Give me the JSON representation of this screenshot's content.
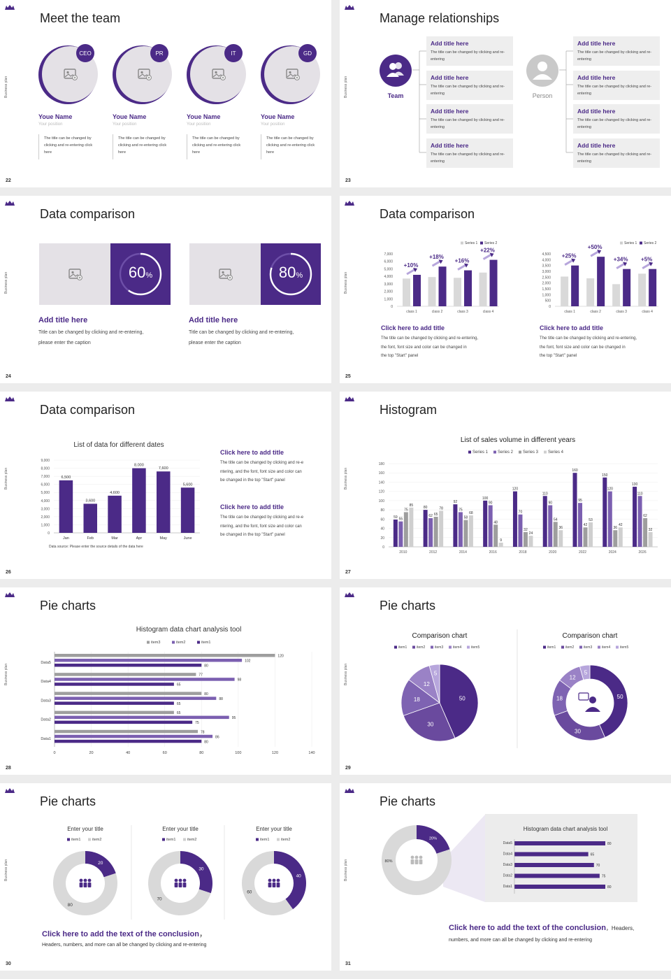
{
  "colors": {
    "purple": "#4b2a87",
    "mid": "#7b5fb0",
    "light": "#b8a8d8",
    "gray": "#bdbdbd",
    "bg": "#ececec"
  },
  "side_label": "Business plan",
  "s22": {
    "num": "22",
    "title": "Meet the team",
    "members": [
      {
        "badge": "CEO",
        "name": "Youe Name",
        "position": "Your position",
        "desc": "The title can be changed by clicking and re-entering click here"
      },
      {
        "badge": "PR",
        "name": "Youe Name",
        "position": "Your position",
        "desc": "The title can be changed by clicking and re-entering click here"
      },
      {
        "badge": "IT",
        "name": "Youe Name",
        "position": "Your position",
        "desc": "The title can be changed by clicking and re-entering click here"
      },
      {
        "badge": "GD",
        "name": "Youe Name",
        "position": "Your position",
        "desc": "The title can be changed by clicking and re-entering click here"
      }
    ]
  },
  "s23": {
    "num": "23",
    "title": "Manage relationships",
    "team_label": "Team",
    "person_label": "Person",
    "box_title": "Add title here",
    "box_text": "The title can be changed by clicking and re-entering"
  },
  "s24": {
    "num": "24",
    "title": "Data comparison",
    "cards": [
      {
        "pct": "60",
        "unit": "%",
        "title": "Add title here",
        "text1": "Title can be changed by clicking and re-entering,",
        "text2": "please enter the caption"
      },
      {
        "pct": "80",
        "unit": "%",
        "title": "Add title here",
        "text1": "Title can be changed by clicking and re-entering,",
        "text2": "please enter the caption"
      }
    ]
  },
  "s25": {
    "num": "25",
    "title": "Data comparison",
    "legend": [
      "Series 1",
      "Series 2"
    ],
    "caption_title": "Click here to add title",
    "caption_text": [
      "The title can be changed by clicking and re-entering,",
      "the font, font size and color can be changed in",
      "the top \"Start\" panel"
    ],
    "charts": [
      {
        "ymax": 7000,
        "ticks": [
          "7,000",
          "6,000",
          "5,000",
          "4,000",
          "3,000",
          "2,000",
          "1,000",
          "0"
        ],
        "categories": [
          "class 1",
          "class 2",
          "class 3",
          "class 4"
        ],
        "s1": [
          3700,
          3900,
          3800,
          4500
        ],
        "s2": [
          4200,
          5300,
          4800,
          6200
        ],
        "labels": [
          "+10%",
          "+18%",
          "+16%",
          "+22%"
        ]
      },
      {
        "ymax": 4500,
        "ticks": [
          "4,500",
          "4,000",
          "3,500",
          "3,000",
          "2,500",
          "2,000",
          "1,500",
          "1,000",
          "500",
          "0"
        ],
        "categories": [
          "class 1",
          "class 2",
          "class 3",
          "class 4"
        ],
        "s1": [
          2550,
          2400,
          1900,
          2800
        ],
        "s2": [
          3500,
          4250,
          3200,
          3200
        ],
        "labels": [
          "+25%",
          "+50%",
          "+34%",
          "+5%"
        ]
      }
    ]
  },
  "s26": {
    "num": "26",
    "title": "Data comparison",
    "chart_title": "List of data for different dates",
    "source": "Data source: Please enter the source details of the data here",
    "blocks": [
      {
        "title": "Click here to add title",
        "lines": [
          "The title can be changed by clicking and re-e",
          "ntering, and the font, font size and color can",
          "be changed in the top \"Start\" panel"
        ]
      },
      {
        "title": "Click here to add title",
        "lines": [
          "The title can be changed by clicking and re-e",
          "ntering, and the font, font size and color can",
          "be changed in the top \"Start\" panel"
        ]
      }
    ]
  },
  "s27": {
    "num": "27",
    "title": "Histogram",
    "chart_title": "List of sales volume in different years",
    "legend": [
      "Series 1",
      "Series 2",
      "Series 3",
      "Series 4"
    ]
  },
  "s28": {
    "num": "28",
    "title": "Pie charts",
    "chart_title": "Histogram data chart analysis tool",
    "legend": [
      "item3",
      "item2",
      "item1"
    ]
  },
  "s29": {
    "num": "29",
    "title": "Pie charts",
    "charts": [
      {
        "title": "Comparison chart"
      },
      {
        "title": "Comparison chart"
      }
    ],
    "legend": [
      "item1",
      "item2",
      "item3",
      "item4",
      "item5"
    ]
  },
  "s30": {
    "num": "30",
    "title": "Pie charts",
    "donuts": [
      {
        "title": "Enter your title"
      },
      {
        "title": "Enter your title"
      },
      {
        "title": "Enter your title"
      }
    ],
    "legend": [
      "item1",
      "item2"
    ],
    "conclusion": "Click here to add the text of the conclusion",
    "conclusion_sep": "，",
    "subtext": "Headers, numbers, and more can all be changed by clicking and re-entering"
  },
  "s31": {
    "num": "31",
    "title": "Pie charts",
    "chart_title": "Histogram data chart analysis tool",
    "conclusion": "Click here to add the text of the conclusion",
    "conclusion_tail": "，Headers,",
    "subtext": "numbers, and more can all be changed by clicking and re-entering"
  },
  "chart_data": [
    {
      "type": "bar",
      "title": "",
      "categories": [
        "class 1",
        "class 2",
        "class 3",
        "class 4"
      ],
      "series": [
        {
          "name": "Series 1",
          "values": [
            3700,
            3900,
            3800,
            4500
          ]
        },
        {
          "name": "Series 2",
          "values": [
            4200,
            5300,
            4800,
            6200
          ]
        }
      ],
      "annotations": [
        "+10%",
        "+18%",
        "+16%",
        "+22%"
      ],
      "ylim": [
        0,
        7000
      ]
    },
    {
      "type": "bar",
      "title": "",
      "categories": [
        "class 1",
        "class 2",
        "class 3",
        "class 4"
      ],
      "series": [
        {
          "name": "Series 1",
          "values": [
            2550,
            2400,
            1900,
            2800
          ]
        },
        {
          "name": "Series 2",
          "values": [
            3500,
            4250,
            3200,
            3200
          ]
        }
      ],
      "annotations": [
        "+25%",
        "+50%",
        "+34%",
        "+5%"
      ],
      "ylim": [
        0,
        4500
      ]
    },
    {
      "type": "bar",
      "title": "List of data for different dates",
      "categories": [
        "Jan",
        "Feb",
        "Mar",
        "Apr",
        "May",
        "June"
      ],
      "values": [
        6500,
        3600,
        4600,
        8000,
        7600,
        5600
      ],
      "value_labels": [
        "6,500",
        "3,600",
        "4,600",
        "8,000",
        "7,600",
        "5,600"
      ],
      "ticks": [
        "9,000",
        "8,000",
        "7,000",
        "6,000",
        "5,000",
        "4,000",
        "3,000",
        "2,000",
        "1,000",
        "0"
      ],
      "ylim": [
        0,
        9000
      ]
    },
    {
      "type": "bar",
      "title": "List of sales volume in different years",
      "categories": [
        "2010",
        "2012",
        "2014",
        "2016",
        "2018",
        "2020",
        "2022",
        "2024",
        "2026"
      ],
      "series": [
        {
          "name": "Series 1",
          "values": [
            59,
            80,
            92,
            100,
            120,
            110,
            160,
            150,
            130
          ]
        },
        {
          "name": "Series 2",
          "values": [
            55,
            62,
            75,
            90,
            70,
            90,
            95,
            120,
            110
          ]
        },
        {
          "name": "Series 3",
          "values": [
            75,
            65,
            58,
            48,
            32,
            54,
            42,
            36,
            62
          ]
        },
        {
          "name": "Series 4",
          "values": [
            85,
            78,
            68,
            9,
            24,
            36,
            53,
            42,
            32
          ]
        }
      ],
      "ticks": [
        "180",
        "160",
        "140",
        "120",
        "100",
        "80",
        "60",
        "40",
        "20",
        "0"
      ],
      "ylim": [
        0,
        180
      ]
    },
    {
      "type": "bar",
      "orientation": "horizontal",
      "title": "Histogram data chart analysis tool",
      "categories": [
        "Data5",
        "Data4",
        "Data3",
        "Data2",
        "Data1"
      ],
      "series": [
        {
          "name": "item3",
          "values": [
            120,
            77,
            80,
            65,
            78
          ]
        },
        {
          "name": "item2",
          "values": [
            102,
            98,
            88,
            95,
            86
          ]
        },
        {
          "name": "item1",
          "values": [
            80,
            65,
            65,
            75,
            80
          ]
        }
      ],
      "ticks": [
        "0",
        "20",
        "40",
        "60",
        "80",
        "100",
        "120",
        "140"
      ],
      "xlim": [
        0,
        140
      ]
    },
    {
      "type": "pie",
      "title": "Comparison chart",
      "labels": [
        "item1",
        "item2",
        "item3",
        "item4",
        "item5"
      ],
      "values": [
        50,
        30,
        18,
        12,
        5
      ]
    },
    {
      "type": "pie",
      "title": "Comparison chart",
      "labels": [
        "item1",
        "item2",
        "item3",
        "item4",
        "item5"
      ],
      "values": [
        50,
        30,
        18,
        12,
        5
      ],
      "donut": true
    },
    {
      "type": "pie",
      "title": "Enter your title",
      "labels": [
        "item1",
        "item2"
      ],
      "values": [
        20,
        80
      ],
      "donut": true
    },
    {
      "type": "pie",
      "title": "Enter your title",
      "labels": [
        "item1",
        "item2"
      ],
      "values": [
        30,
        70
      ],
      "donut": true
    },
    {
      "type": "pie",
      "title": "Enter your title",
      "labels": [
        "item1",
        "item2"
      ],
      "values": [
        40,
        60
      ],
      "donut": true
    },
    {
      "type": "pie",
      "title": "",
      "labels": [
        "",
        ""
      ],
      "values": [
        20,
        80
      ],
      "value_labels": [
        "20%",
        "80%"
      ],
      "donut": true
    },
    {
      "type": "bar",
      "orientation": "horizontal",
      "title": "Histogram data chart analysis tool",
      "categories": [
        "Data5",
        "Data4",
        "Data3",
        "Data2",
        "Data1"
      ],
      "values": [
        80,
        65,
        70,
        75,
        80
      ]
    }
  ]
}
